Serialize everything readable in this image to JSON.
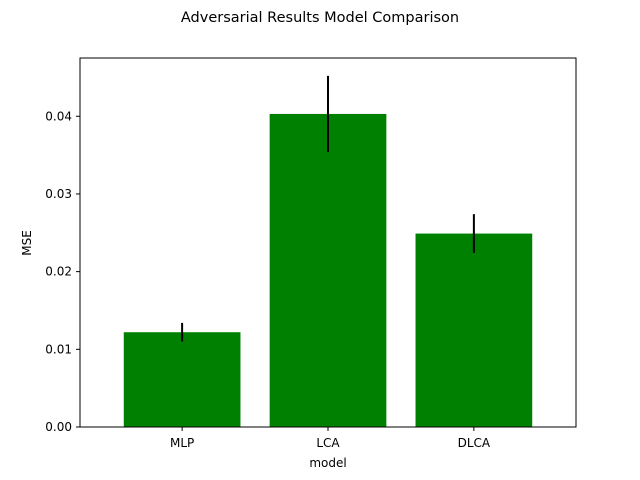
{
  "chart_data": {
    "type": "bar",
    "title": "Adversarial Results Model Comparison",
    "xlabel": "model",
    "ylabel": "MSE",
    "categories": [
      "MLP",
      "LCA",
      "DLCA"
    ],
    "values": [
      0.0122,
      0.0403,
      0.0249
    ],
    "errors": [
      0.0012,
      0.0049,
      0.0025
    ],
    "ylim": [
      0,
      0.0475
    ],
    "yticks": [
      0.0,
      0.01,
      0.02,
      0.03,
      0.04
    ],
    "ytick_labels": [
      "0.00",
      "0.01",
      "0.02",
      "0.03",
      "0.04"
    ],
    "bar_color": "#008000",
    "error_color": "#000000",
    "grid": false,
    "legend": "none"
  }
}
